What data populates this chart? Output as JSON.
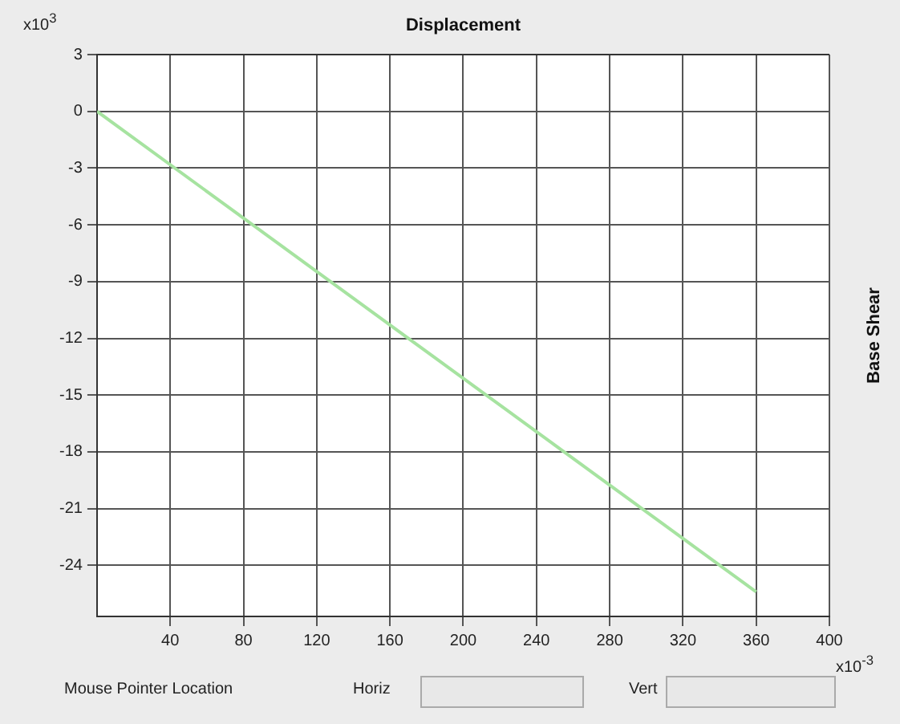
{
  "chart_data": {
    "type": "line",
    "title": "Displacement",
    "ylabel": "Base Shear",
    "annotations": [
      "x10$^{3}$",
      "x10$^{-3}$",
      "Mouse Pointer Location",
      "Horiz",
      "Vert"
    ],
    "x": [
      0,
      360
    ],
    "series": [
      {
        "color": "#a6e3a0",
        "values": [
          0,
          -25.4
        ]
      }
    ],
    "xlim": [
      0,
      400
    ],
    "xticks": [
      40,
      80,
      120,
      160,
      200,
      240,
      280,
      320,
      360,
      400
    ],
    "ylim": [
      -26.7,
      3
    ],
    "yticks": [
      3,
      0,
      -3,
      -6,
      -9,
      -12,
      -15,
      -18,
      -21,
      -24
    ],
    "grid": true,
    "legend": false,
    "marker": "none",
    "line_style": "solid"
  }
}
